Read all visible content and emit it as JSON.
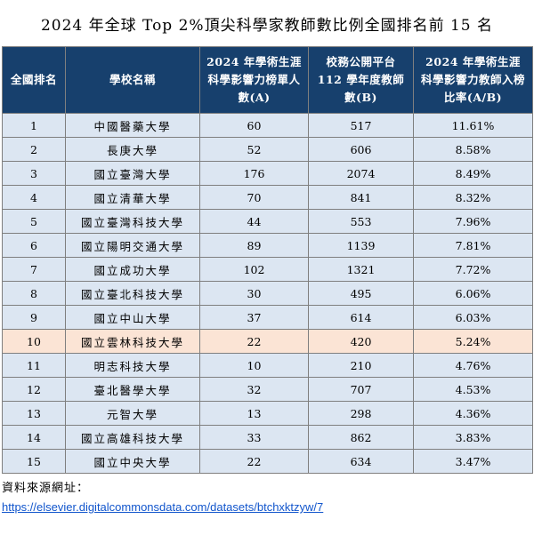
{
  "title": "2024 年全球 Top 2%頂尖科學家教師數比例全國排名前 15 名",
  "table": {
    "headers": [
      "全國排名",
      "學校名稱",
      "2024 年學術生涯科學影響力榜單人數(A)",
      "校務公開平台 112 學年度教師數(B)",
      "2024 年學術生涯科學影響力教師入榜比率(A/B)"
    ],
    "rows": [
      {
        "rank": "1",
        "school": "中國醫藥大學",
        "a": "60",
        "b": "517",
        "ratio": "11.61%"
      },
      {
        "rank": "2",
        "school": "長庚大學",
        "a": "52",
        "b": "606",
        "ratio": "8.58%"
      },
      {
        "rank": "3",
        "school": "國立臺灣大學",
        "a": "176",
        "b": "2074",
        "ratio": "8.49%"
      },
      {
        "rank": "4",
        "school": "國立清華大學",
        "a": "70",
        "b": "841",
        "ratio": "8.32%"
      },
      {
        "rank": "5",
        "school": "國立臺灣科技大學",
        "a": "44",
        "b": "553",
        "ratio": "7.96%"
      },
      {
        "rank": "6",
        "school": "國立陽明交通大學",
        "a": "89",
        "b": "1139",
        "ratio": "7.81%"
      },
      {
        "rank": "7",
        "school": "國立成功大學",
        "a": "102",
        "b": "1321",
        "ratio": "7.72%"
      },
      {
        "rank": "8",
        "school": "國立臺北科技大學",
        "a": "30",
        "b": "495",
        "ratio": "6.06%"
      },
      {
        "rank": "9",
        "school": "國立中山大學",
        "a": "37",
        "b": "614",
        "ratio": "6.03%"
      },
      {
        "rank": "10",
        "school": "國立雲林科技大學",
        "a": "22",
        "b": "420",
        "ratio": "5.24%"
      },
      {
        "rank": "11",
        "school": "明志科技大學",
        "a": "10",
        "b": "210",
        "ratio": "4.76%"
      },
      {
        "rank": "12",
        "school": "臺北醫學大學",
        "a": "32",
        "b": "707",
        "ratio": "4.53%"
      },
      {
        "rank": "13",
        "school": "元智大學",
        "a": "13",
        "b": "298",
        "ratio": "4.36%"
      },
      {
        "rank": "14",
        "school": "國立高雄科技大學",
        "a": "33",
        "b": "862",
        "ratio": "3.83%"
      },
      {
        "rank": "15",
        "school": "國立中央大學",
        "a": "22",
        "b": "634",
        "ratio": "3.47%"
      }
    ],
    "highlight_rank": "10",
    "colors": {
      "header_bg": "#17406d",
      "row_bg": "#dce6f2",
      "highlight_bg": "#fbe4d5"
    }
  },
  "source": {
    "label": "資料來源網址：",
    "url": "https://elsevier.digitalcommonsdata.com/datasets/btchxktzyw/7"
  }
}
